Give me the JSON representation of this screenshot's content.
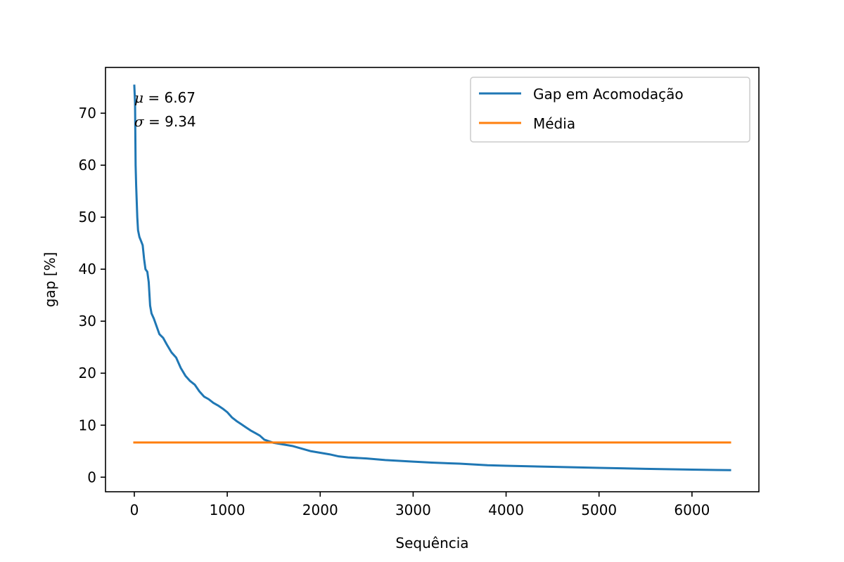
{
  "chart_data": {
    "type": "line",
    "title": "",
    "xlabel": "Sequência",
    "ylabel": "gap [%]",
    "xlim": [
      -310,
      6720
    ],
    "ylim": [
      -2.8,
      78.8
    ],
    "xticks": [
      0,
      1000,
      2000,
      3000,
      4000,
      5000,
      6000
    ],
    "yticks": [
      0,
      10,
      20,
      30,
      40,
      50,
      60,
      70
    ],
    "grid": false,
    "legend_position": "upper right",
    "annotations": {
      "mu_symbol": "μ",
      "mu_text": " = 6.67",
      "sigma_symbol": "σ",
      "sigma_text": " = 9.34"
    },
    "series": [
      {
        "name": "Gap em Acomodação",
        "color": "#1f77b4",
        "points": [
          [
            0,
            75.3
          ],
          [
            8,
            72.0
          ],
          [
            14,
            60.0
          ],
          [
            20,
            56.0
          ],
          [
            26,
            53.0
          ],
          [
            32,
            50.0
          ],
          [
            40,
            47.5
          ],
          [
            55,
            46.2
          ],
          [
            75,
            45.3
          ],
          [
            90,
            44.6
          ],
          [
            105,
            42.0
          ],
          [
            120,
            40.0
          ],
          [
            140,
            39.5
          ],
          [
            155,
            37.5
          ],
          [
            170,
            33.0
          ],
          [
            185,
            31.5
          ],
          [
            210,
            30.5
          ],
          [
            240,
            29.0
          ],
          [
            270,
            27.5
          ],
          [
            310,
            26.8
          ],
          [
            350,
            25.5
          ],
          [
            400,
            24.0
          ],
          [
            450,
            23.0
          ],
          [
            500,
            21.0
          ],
          [
            550,
            19.5
          ],
          [
            600,
            18.5
          ],
          [
            650,
            17.8
          ],
          [
            700,
            16.5
          ],
          [
            750,
            15.5
          ],
          [
            800,
            15.0
          ],
          [
            850,
            14.3
          ],
          [
            900,
            13.8
          ],
          [
            950,
            13.2
          ],
          [
            1000,
            12.5
          ],
          [
            1050,
            11.5
          ],
          [
            1100,
            10.8
          ],
          [
            1150,
            10.2
          ],
          [
            1200,
            9.6
          ],
          [
            1250,
            9.0
          ],
          [
            1300,
            8.5
          ],
          [
            1350,
            8.0
          ],
          [
            1400,
            7.2
          ],
          [
            1450,
            6.9
          ],
          [
            1500,
            6.6
          ],
          [
            1600,
            6.3
          ],
          [
            1700,
            6.0
          ],
          [
            1800,
            5.5
          ],
          [
            1900,
            5.0
          ],
          [
            2000,
            4.7
          ],
          [
            2100,
            4.4
          ],
          [
            2200,
            4.0
          ],
          [
            2300,
            3.8
          ],
          [
            2500,
            3.6
          ],
          [
            2700,
            3.3
          ],
          [
            3000,
            3.0
          ],
          [
            3200,
            2.8
          ],
          [
            3500,
            2.6
          ],
          [
            3800,
            2.3
          ],
          [
            4000,
            2.2
          ],
          [
            4500,
            2.0
          ],
          [
            5000,
            1.8
          ],
          [
            5500,
            1.6
          ],
          [
            6000,
            1.45
          ],
          [
            6410,
            1.35
          ]
        ]
      },
      {
        "name": "Média",
        "color": "#ff7f0e",
        "points": [
          [
            0,
            6.67
          ],
          [
            6410,
            6.67
          ]
        ]
      }
    ]
  }
}
